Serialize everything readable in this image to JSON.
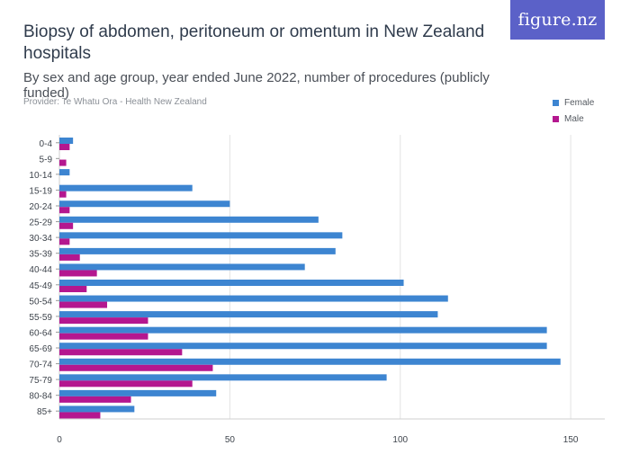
{
  "header": {
    "title": "Biopsy of abdomen, peritoneum or omentum in New Zealand hospitals",
    "subtitle": "By sex and age group, year ended June 2022, number of procedures (publicly funded)",
    "provider": "Provider: Te Whatu Ora - Health New Zealand",
    "logo_text": "figure.nz"
  },
  "colors": {
    "female": "#3d85d1",
    "male": "#b4178f",
    "grid": "#e3e3e3",
    "logo_bg": "#5b61c8"
  },
  "chart_data": {
    "type": "bar",
    "orientation": "horizontal",
    "categories": [
      "0-4",
      "5-9",
      "10-14",
      "15-19",
      "20-24",
      "25-29",
      "30-34",
      "35-39",
      "40-44",
      "45-49",
      "50-54",
      "55-59",
      "60-64",
      "65-69",
      "70-74",
      "75-79",
      "80-84",
      "85+"
    ],
    "series": [
      {
        "name": "Female",
        "values": [
          4,
          0,
          3,
          39,
          50,
          76,
          83,
          81,
          72,
          101,
          114,
          111,
          143,
          143,
          147,
          96,
          46,
          22
        ]
      },
      {
        "name": "Male",
        "values": [
          3,
          2,
          0,
          2,
          3,
          4,
          3,
          6,
          11,
          8,
          14,
          26,
          26,
          36,
          45,
          39,
          21,
          12
        ]
      }
    ],
    "xlim": [
      0,
      160
    ],
    "xticks": [
      0,
      50,
      100,
      150
    ],
    "grid": true,
    "legend": "top-right"
  }
}
